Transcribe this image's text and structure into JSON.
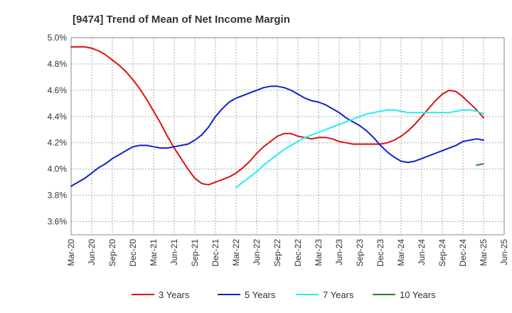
{
  "chart_data": {
    "type": "line",
    "title": "[9474]  Trend of Mean of Net Income Margin",
    "xlabel": "",
    "ylabel": "",
    "ylim": [
      3.5,
      5.0
    ],
    "y_ticks": [
      3.6,
      3.8,
      4.0,
      4.2,
      4.4,
      4.6,
      4.8,
      5.0
    ],
    "y_tick_labels": [
      "3.6%",
      "3.8%",
      "4.0%",
      "4.2%",
      "4.4%",
      "4.6%",
      "4.8%",
      "5.0%"
    ],
    "x_tick_labels": [
      "Mar-20",
      "Jun-20",
      "Sep-20",
      "Dec-20",
      "Mar-21",
      "Jun-21",
      "Sep-21",
      "Dec-21",
      "Mar-22",
      "Jun-22",
      "Sep-22",
      "Dec-22",
      "Mar-23",
      "Jun-23",
      "Sep-23",
      "Dec-23",
      "Mar-24",
      "Jun-24",
      "Sep-24",
      "Dec-24",
      "Mar-25",
      "Jun-25"
    ],
    "grid": true,
    "legend_position": "bottom",
    "series": [
      {
        "name": "3 Years",
        "color": "#dd1111",
        "points": [
          [
            "Mar-20",
            4.93
          ],
          [
            "Apr-20",
            4.93
          ],
          [
            "May-20",
            4.93
          ],
          [
            "Jun-20",
            4.92
          ],
          [
            "Jul-20",
            4.9
          ],
          [
            "Aug-20",
            4.87
          ],
          [
            "Sep-20",
            4.83
          ],
          [
            "Oct-20",
            4.79
          ],
          [
            "Nov-20",
            4.74
          ],
          [
            "Dec-20",
            4.68
          ],
          [
            "Jan-21",
            4.61
          ],
          [
            "Feb-21",
            4.53
          ],
          [
            "Mar-21",
            4.44
          ],
          [
            "Apr-21",
            4.35
          ],
          [
            "May-21",
            4.25
          ],
          [
            "Jun-21",
            4.16
          ],
          [
            "Jul-21",
            4.08
          ],
          [
            "Aug-21",
            4.0
          ],
          [
            "Sep-21",
            3.93
          ],
          [
            "Oct-21",
            3.89
          ],
          [
            "Nov-21",
            3.88
          ],
          [
            "Dec-21",
            3.9
          ],
          [
            "Jan-22",
            3.92
          ],
          [
            "Feb-22",
            3.94
          ],
          [
            "Mar-22",
            3.97
          ],
          [
            "Apr-22",
            4.01
          ],
          [
            "May-22",
            4.06
          ],
          [
            "Jun-22",
            4.12
          ],
          [
            "Jul-22",
            4.17
          ],
          [
            "Aug-22",
            4.21
          ],
          [
            "Sep-22",
            4.25
          ],
          [
            "Oct-22",
            4.27
          ],
          [
            "Nov-22",
            4.27
          ],
          [
            "Dec-22",
            4.25
          ],
          [
            "Jan-23",
            4.24
          ],
          [
            "Feb-23",
            4.23
          ],
          [
            "Mar-23",
            4.24
          ],
          [
            "Apr-23",
            4.24
          ],
          [
            "May-23",
            4.23
          ],
          [
            "Jun-23",
            4.21
          ],
          [
            "Jul-23",
            4.2
          ],
          [
            "Aug-23",
            4.19
          ],
          [
            "Sep-23",
            4.19
          ],
          [
            "Oct-23",
            4.19
          ],
          [
            "Nov-23",
            4.19
          ],
          [
            "Dec-23",
            4.19
          ],
          [
            "Jan-24",
            4.2
          ],
          [
            "Feb-24",
            4.22
          ],
          [
            "Mar-24",
            4.25
          ],
          [
            "Apr-24",
            4.29
          ],
          [
            "May-24",
            4.34
          ],
          [
            "Jun-24",
            4.4
          ],
          [
            "Jul-24",
            4.46
          ],
          [
            "Aug-24",
            4.52
          ],
          [
            "Sep-24",
            4.57
          ],
          [
            "Oct-24",
            4.6
          ],
          [
            "Nov-24",
            4.59
          ],
          [
            "Dec-24",
            4.55
          ],
          [
            "Jan-25",
            4.5
          ],
          [
            "Feb-25",
            4.45
          ],
          [
            "Mar-25",
            4.39
          ]
        ]
      },
      {
        "name": "5 Years",
        "color": "#1122cc",
        "points": [
          [
            "Mar-20",
            3.87
          ],
          [
            "Apr-20",
            3.9
          ],
          [
            "May-20",
            3.93
          ],
          [
            "Jun-20",
            3.97
          ],
          [
            "Jul-20",
            4.01
          ],
          [
            "Aug-20",
            4.04
          ],
          [
            "Sep-20",
            4.08
          ],
          [
            "Oct-20",
            4.11
          ],
          [
            "Nov-20",
            4.14
          ],
          [
            "Dec-20",
            4.17
          ],
          [
            "Jan-21",
            4.18
          ],
          [
            "Feb-21",
            4.18
          ],
          [
            "Mar-21",
            4.17
          ],
          [
            "Apr-21",
            4.16
          ],
          [
            "May-21",
            4.16
          ],
          [
            "Jun-21",
            4.17
          ],
          [
            "Jul-21",
            4.18
          ],
          [
            "Aug-21",
            4.19
          ],
          [
            "Sep-21",
            4.22
          ],
          [
            "Oct-21",
            4.26
          ],
          [
            "Nov-21",
            4.32
          ],
          [
            "Dec-21",
            4.4
          ],
          [
            "Jan-22",
            4.46
          ],
          [
            "Feb-22",
            4.51
          ],
          [
            "Mar-22",
            4.54
          ],
          [
            "Apr-22",
            4.56
          ],
          [
            "May-22",
            4.58
          ],
          [
            "Jun-22",
            4.6
          ],
          [
            "Jul-22",
            4.62
          ],
          [
            "Aug-22",
            4.63
          ],
          [
            "Sep-22",
            4.63
          ],
          [
            "Oct-22",
            4.62
          ],
          [
            "Nov-22",
            4.6
          ],
          [
            "Dec-22",
            4.57
          ],
          [
            "Jan-23",
            4.54
          ],
          [
            "Feb-23",
            4.52
          ],
          [
            "Mar-23",
            4.51
          ],
          [
            "Apr-23",
            4.49
          ],
          [
            "May-23",
            4.46
          ],
          [
            "Jun-23",
            4.43
          ],
          [
            "Jul-23",
            4.39
          ],
          [
            "Aug-23",
            4.36
          ],
          [
            "Sep-23",
            4.33
          ],
          [
            "Oct-23",
            4.29
          ],
          [
            "Nov-23",
            4.24
          ],
          [
            "Dec-23",
            4.18
          ],
          [
            "Jan-24",
            4.13
          ],
          [
            "Feb-24",
            4.09
          ],
          [
            "Mar-24",
            4.06
          ],
          [
            "Apr-24",
            4.05
          ],
          [
            "May-24",
            4.06
          ],
          [
            "Jun-24",
            4.08
          ],
          [
            "Jul-24",
            4.1
          ],
          [
            "Aug-24",
            4.12
          ],
          [
            "Sep-24",
            4.14
          ],
          [
            "Oct-24",
            4.16
          ],
          [
            "Nov-24",
            4.18
          ],
          [
            "Dec-24",
            4.21
          ],
          [
            "Jan-25",
            4.22
          ],
          [
            "Feb-25",
            4.23
          ],
          [
            "Mar-25",
            4.22
          ]
        ]
      },
      {
        "name": "7 Years",
        "color": "#22eeee",
        "points": [
          [
            "Mar-22",
            3.86
          ],
          [
            "Apr-22",
            3.9
          ],
          [
            "May-22",
            3.94
          ],
          [
            "Jun-22",
            3.98
          ],
          [
            "Jul-22",
            4.03
          ],
          [
            "Aug-22",
            4.07
          ],
          [
            "Sep-22",
            4.11
          ],
          [
            "Oct-22",
            4.15
          ],
          [
            "Nov-22",
            4.18
          ],
          [
            "Dec-22",
            4.21
          ],
          [
            "Jan-23",
            4.24
          ],
          [
            "Feb-23",
            4.26
          ],
          [
            "Mar-23",
            4.28
          ],
          [
            "Apr-23",
            4.3
          ],
          [
            "May-23",
            4.32
          ],
          [
            "Jun-23",
            4.34
          ],
          [
            "Jul-23",
            4.36
          ],
          [
            "Aug-23",
            4.38
          ],
          [
            "Sep-23",
            4.4
          ],
          [
            "Oct-23",
            4.42
          ],
          [
            "Nov-23",
            4.43
          ],
          [
            "Dec-23",
            4.44
          ],
          [
            "Jan-24",
            4.45
          ],
          [
            "Feb-24",
            4.45
          ],
          [
            "Mar-24",
            4.44
          ],
          [
            "Apr-24",
            4.43
          ],
          [
            "May-24",
            4.43
          ],
          [
            "Jun-24",
            4.43
          ],
          [
            "Jul-24",
            4.43
          ],
          [
            "Aug-24",
            4.43
          ],
          [
            "Sep-24",
            4.43
          ],
          [
            "Oct-24",
            4.43
          ],
          [
            "Nov-24",
            4.44
          ],
          [
            "Dec-24",
            4.45
          ],
          [
            "Jan-25",
            4.45
          ],
          [
            "Feb-25",
            4.44
          ],
          [
            "Mar-25",
            4.42
          ]
        ]
      },
      {
        "name": "10 Years",
        "color": "#228822",
        "points": [
          [
            "Feb-25",
            4.03
          ],
          [
            "Mar-25",
            4.04
          ]
        ]
      }
    ]
  }
}
